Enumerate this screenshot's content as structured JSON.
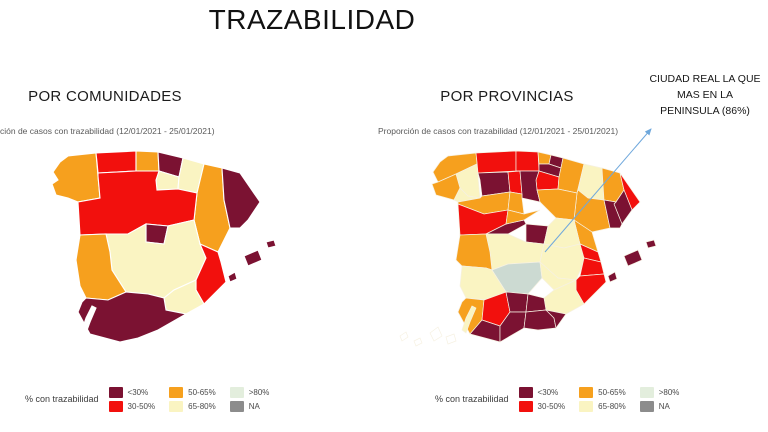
{
  "title": "TRAZABILIDAD",
  "annotation": {
    "lines": [
      "CIUDAD REAL LA QUE",
      "MAS EN LA",
      "PENINSULA (86%)"
    ],
    "arrow_color": "#6fa8dc"
  },
  "colors": {
    "lt30": "#7b1232",
    "b3050": "#f2100d",
    "b5065": "#f6a01e",
    "b6580": "#faf4c2",
    "gt80": "#e3eedd",
    "gt80map": "#ccdad2",
    "na": "#8c8c8c",
    "none": "#ffffff"
  },
  "legend": {
    "label": "% con trazabilidad",
    "items": [
      {
        "label": "<30%",
        "cat": "lt30"
      },
      {
        "label": "30-50%",
        "cat": "b3050"
      },
      {
        "label": "50-65%",
        "cat": "b5065"
      },
      {
        "label": "65-80%",
        "cat": "b6580"
      },
      {
        "label": ">80%",
        "cat": "gt80"
      },
      {
        "label": "NA",
        "cat": "na"
      }
    ]
  },
  "maps": {
    "left": {
      "heading": "POR COMUNIDADES",
      "subtitle": "ción de casos con trazabilidad (12/01/2021 - 25/01/2021)",
      "regions": [
        {
          "name": "galicia",
          "cat": "b5065",
          "polys": [
            "52,22 60,16 88,13 90,36 92,58 70,62 60,58 48,55 44,44 50,40 45,32"
          ]
        },
        {
          "name": "asturias",
          "cat": "b3050",
          "polys": [
            "88,13 128,11 128,31 90,33 89,22"
          ]
        },
        {
          "name": "cantabria",
          "cat": "b5065",
          "polys": [
            "128,11 150,12 151,31 128,31"
          ]
        },
        {
          "name": "pais-vasco",
          "cat": "lt30",
          "polys": [
            "150,12 175,18 171,37 151,31"
          ]
        },
        {
          "name": "la-rioja",
          "cat": "b6580",
          "polys": [
            "151,31 171,37 170,49 149,50 148,40"
          ]
        },
        {
          "name": "navarra",
          "cat": "b6580",
          "polys": [
            "175,18 196,24 189,53 170,49 171,37"
          ]
        },
        {
          "name": "aragon",
          "cat": "b5065",
          "polys": [
            "196,24 214,28 216,60 222,88 210,112 192,104 186,80 189,53"
          ]
        },
        {
          "name": "cataluna",
          "cat": "lt30",
          "polys": [
            "214,28 232,33 252,62 240,80 232,88 222,88 216,60"
          ]
        },
        {
          "name": "castilla-y-leon",
          "cat": "b3050",
          "polys": [
            "90,33 128,31 151,31 148,40 149,50 170,49 189,53 186,80 160,86 138,84 120,94 98,94 72,95 70,62 92,58 90,36"
          ]
        },
        {
          "name": "madrid",
          "cat": "lt30",
          "polys": [
            "138,84 160,86 156,104 138,102"
          ]
        },
        {
          "name": "castilla-la-mancha",
          "cat": "b6580",
          "polys": [
            "98,94 120,94 138,84 138,102 156,104 160,86 186,80 192,104 198,118 188,140 166,150 156,158 140,154 118,152 104,130 102,112"
          ]
        },
        {
          "name": "extremadura",
          "cat": "b5065",
          "polys": [
            "72,95 98,94 102,112 104,130 118,152 100,160 78,158 72,146 68,120"
          ]
        },
        {
          "name": "comunidad-valenciana",
          "cat": "b3050",
          "polys": [
            "192,104 210,112 213,122 216,134 218,142 196,164 188,150 188,140 198,118"
          ]
        },
        {
          "name": "murcia",
          "cat": "b6580",
          "polys": [
            "166,150 188,140 188,150 196,164 178,174 158,170 156,158"
          ]
        },
        {
          "name": "andalucia",
          "cat": "lt30",
          "polys": [
            "78,158 100,160 118,152 140,154 156,158 158,170 178,174 150,190 130,198 112,202 82,194 70,172 74,162"
          ]
        },
        {
          "name": "illes-balears",
          "cat": "lt30",
          "polys": [
            "236,116 250,110 254,120 240,126",
            "258,102 266,100 268,106 260,108",
            "220,136 227,132 229,139 222,142"
          ]
        },
        {
          "name": "canarias",
          "cat": "none",
          "outline": true,
          "polys": [
            "12,196 18,192 20,197 14,201",
            "26,201 32,198 34,203 28,206",
            "42,193 50,187 54,196 46,201",
            "58,197 66,194 68,201 60,204",
            "74,190 78,178 84,166 88,168 82,182 78,193"
          ]
        }
      ]
    },
    "right": {
      "heading": "POR PROVINCIAS",
      "subtitle": "Proporción de casos con trazabilidad (12/01/2021 - 25/01/2021)",
      "regions": [
        {
          "name": "a-coruna",
          "cat": "b5065",
          "polys": [
            "52,22 60,16 88,13 89,24 68,34 50,42 45,32"
          ]
        },
        {
          "name": "lugo",
          "cat": "b6580",
          "polys": [
            "89,24 90,36 92,58 80,56 72,48 68,34"
          ]
        },
        {
          "name": "pontevedra",
          "cat": "b5065",
          "polys": [
            "44,44 50,42 68,34 72,48 66,60 48,55"
          ]
        },
        {
          "name": "ourense",
          "cat": "b6580",
          "polys": [
            "72,48 80,56 92,58 70,62 66,60"
          ]
        },
        {
          "name": "asturias",
          "cat": "b3050",
          "polys": [
            "88,13 128,11 128,31 90,33 89,22"
          ]
        },
        {
          "name": "cantabria",
          "cat": "b3050",
          "polys": [
            "128,11 150,12 151,31 128,31"
          ]
        },
        {
          "name": "bizkaia",
          "cat": "b5065",
          "polys": [
            "150,12 163,15 161,24 151,24"
          ]
        },
        {
          "name": "gipuzkoa",
          "cat": "lt30",
          "polys": [
            "163,15 175,18 173,28 161,24"
          ]
        },
        {
          "name": "alava",
          "cat": "lt30",
          "polys": [
            "151,24 161,24 173,28 171,37 151,31"
          ]
        },
        {
          "name": "la-rioja",
          "cat": "b3050",
          "polys": [
            "151,31 171,37 170,49 149,50 148,40"
          ]
        },
        {
          "name": "navarra",
          "cat": "b5065",
          "polys": [
            "175,18 196,24 189,53 170,49 171,37"
          ]
        },
        {
          "name": "huesca",
          "cat": "b6580",
          "polys": [
            "196,24 214,28 216,60 200,58 190,50"
          ]
        },
        {
          "name": "zaragoza",
          "cat": "b5065",
          "polys": [
            "190,50 200,58 216,60 222,88 204,92 186,80 189,53"
          ]
        },
        {
          "name": "teruel",
          "cat": "b5065",
          "polys": [
            "186,80 204,92 210,112 192,104"
          ]
        },
        {
          "name": "lleida",
          "cat": "b5065",
          "polys": [
            "214,28 232,33 236,50 228,62 216,60"
          ]
        },
        {
          "name": "girona",
          "cat": "b3050",
          "polys": [
            "232,33 252,62 244,70 236,50"
          ]
        },
        {
          "name": "barcelona",
          "cat": "lt30",
          "polys": [
            "236,50 244,70 234,84 226,64 228,62"
          ]
        },
        {
          "name": "tarragona",
          "cat": "lt30",
          "polys": [
            "216,60 228,62 226,64 234,84 232,88 222,88"
          ]
        },
        {
          "name": "leon",
          "cat": "lt30",
          "polys": [
            "90,33 120,32 122,52 94,56 92,40"
          ]
        },
        {
          "name": "palencia",
          "cat": "b3050",
          "polys": [
            "120,32 132,31 134,54 122,52"
          ]
        },
        {
          "name": "burgos",
          "cat": "lt30",
          "polys": [
            "132,31 151,31 148,40 149,50 152,62 134,58 134,54"
          ]
        },
        {
          "name": "zamora",
          "cat": "b5065",
          "polys": [
            "94,56 122,52 120,70 96,74 70,64 70,62 92,58"
          ]
        },
        {
          "name": "valladolid",
          "cat": "b5065",
          "polys": [
            "122,52 134,54 134,58 136,74 120,70"
          ]
        },
        {
          "name": "soria",
          "cat": "b5065",
          "polys": [
            "149,50 170,49 189,53 186,80 168,78 152,62"
          ]
        },
        {
          "name": "salamanca",
          "cat": "b3050",
          "polys": [
            "70,64 96,74 120,70 118,84 98,94 72,95"
          ]
        },
        {
          "name": "avila",
          "cat": "lt30",
          "polys": [
            "98,94 118,84 136,80 138,84 120,94"
          ]
        },
        {
          "name": "segovia",
          "cat": "b5065",
          "polys": [
            "120,70 136,74 152,70 136,80 118,84"
          ]
        },
        {
          "name": "madrid",
          "cat": "lt30",
          "polys": [
            "138,84 160,86 156,104 138,102"
          ]
        },
        {
          "name": "guadalajara",
          "cat": "b6580",
          "polys": [
            "160,86 168,78 186,80 192,104 176,108 156,104"
          ]
        },
        {
          "name": "toledo",
          "cat": "b6580",
          "polys": [
            "98,94 120,94 138,102 156,104 152,122 120,124 104,130 102,112"
          ]
        },
        {
          "name": "cuenca",
          "cat": "b6580",
          "polys": [
            "156,104 176,108 192,104 198,118 188,140 170,138 152,122"
          ]
        },
        {
          "name": "ciudad-real",
          "cat": "gt80map",
          "polys": [
            "104,130 120,124 152,122 154,138 140,154 118,152"
          ]
        },
        {
          "name": "albacete",
          "cat": "b6580",
          "polys": [
            "152,122 170,138 188,140 166,150 154,138"
          ]
        },
        {
          "name": "caceres",
          "cat": "b5065",
          "polys": [
            "72,95 98,94 102,112 104,130 98,128 74,126 68,120"
          ]
        },
        {
          "name": "badajoz",
          "cat": "b6580",
          "polys": [
            "74,126 98,128 104,130 118,152 100,160 78,158 72,146"
          ]
        },
        {
          "name": "castellon",
          "cat": "b3050",
          "polys": [
            "192,104 210,112 213,122 196,118"
          ]
        },
        {
          "name": "valencia",
          "cat": "b3050",
          "polys": [
            "196,118 213,122 216,134 192,136"
          ]
        },
        {
          "name": "alicante",
          "cat": "b3050",
          "polys": [
            "192,136 216,134 218,142 196,164 188,150 188,140"
          ]
        },
        {
          "name": "murcia",
          "cat": "b6580",
          "polys": [
            "166,150 188,140 188,150 196,164 178,174 158,170 156,158"
          ]
        },
        {
          "name": "huelva",
          "cat": "b5065",
          "polys": [
            "78,158 96,160 94,180 82,194 70,172 74,162"
          ]
        },
        {
          "name": "sevilla",
          "cat": "b3050",
          "polys": [
            "96,160 118,152 122,172 112,186 94,180"
          ]
        },
        {
          "name": "cadiz",
          "cat": "lt30",
          "polys": [
            "94,180 112,186 112,202 82,194"
          ]
        },
        {
          "name": "cordoba",
          "cat": "lt30",
          "polys": [
            "118,152 140,154 138,172 122,172"
          ]
        },
        {
          "name": "malaga",
          "cat": "lt30",
          "polys": [
            "122,172 138,172 136,188 112,202 112,186"
          ]
        },
        {
          "name": "jaen",
          "cat": "lt30",
          "polys": [
            "140,154 156,158 158,170 138,172"
          ]
        },
        {
          "name": "granada",
          "cat": "lt30",
          "polys": [
            "138,172 158,170 166,178 168,188 150,190 136,188"
          ]
        },
        {
          "name": "almeria",
          "cat": "lt30",
          "polys": [
            "158,170 178,174 168,188 166,178"
          ]
        },
        {
          "name": "illes-balears",
          "cat": "lt30",
          "polys": [
            "236,116 250,110 254,120 240,126",
            "258,102 266,100 268,106 260,108",
            "220,136 227,132 229,139 222,142"
          ]
        },
        {
          "name": "canarias-occidentales",
          "cat": "none",
          "outline": true,
          "polys": [
            "12,196 18,192 20,197 14,201",
            "26,201 32,198 34,203 28,206",
            "42,193 50,187 54,196 46,201",
            "58,197 66,194 68,201 60,204"
          ]
        },
        {
          "name": "canarias-orientales",
          "cat": "b6580",
          "outline": true,
          "polys": [
            "74,190 78,178 84,166 88,168 82,182 78,193"
          ]
        }
      ]
    }
  }
}
